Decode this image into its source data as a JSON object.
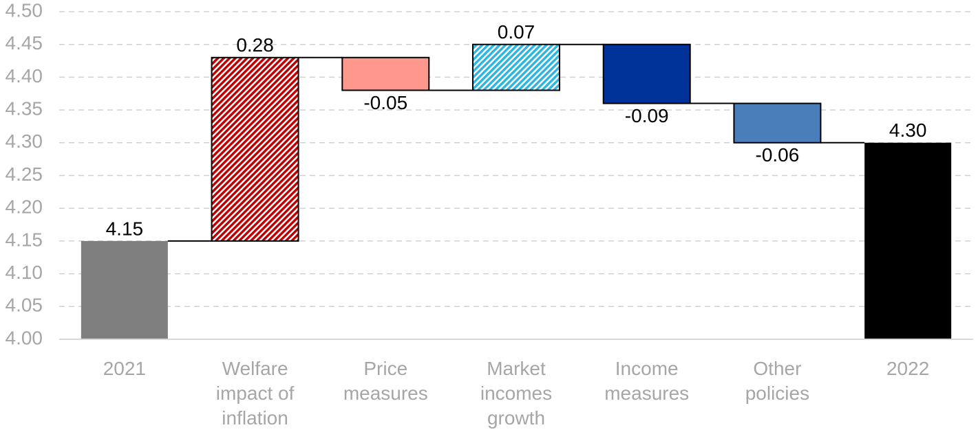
{
  "chart_data": {
    "type": "waterfall",
    "categories": [
      "2021",
      "Welfare impact of inflation",
      "Price measures",
      "Market incomes growth",
      "Income measures",
      "Other policies",
      "2022"
    ],
    "values": [
      4.15,
      0.28,
      -0.05,
      0.07,
      -0.09,
      -0.06,
      4.3
    ],
    "value_labels": [
      "4.15",
      "0.28",
      "-0.05",
      "0.07",
      "-0.09",
      "-0.06",
      "4.30"
    ],
    "measure": [
      "absolute",
      "relative",
      "relative",
      "relative",
      "relative",
      "relative",
      "absolute"
    ],
    "colors": [
      "#7f7f7f",
      "#c00000",
      "#ff988c",
      "#2fb6e0",
      "#003399",
      "#4a7ebb",
      "#000000"
    ],
    "hatch": [
      false,
      true,
      false,
      true,
      false,
      false,
      false
    ],
    "ylim": [
      4.0,
      4.5
    ],
    "yticks": [
      {
        "value": 4.0,
        "label": "4.00"
      },
      {
        "value": 4.05,
        "label": "4.05"
      },
      {
        "value": 4.1,
        "label": "4.10"
      },
      {
        "value": 4.15,
        "label": "4.15"
      },
      {
        "value": 4.2,
        "label": "4.20"
      },
      {
        "value": 4.25,
        "label": "4.25"
      },
      {
        "value": 4.3,
        "label": "4.30"
      },
      {
        "value": 4.35,
        "label": "4.35"
      },
      {
        "value": 4.4,
        "label": "4.40"
      },
      {
        "value": 4.45,
        "label": "4.45"
      },
      {
        "value": 4.5,
        "label": "4.50"
      }
    ],
    "grid": true
  }
}
